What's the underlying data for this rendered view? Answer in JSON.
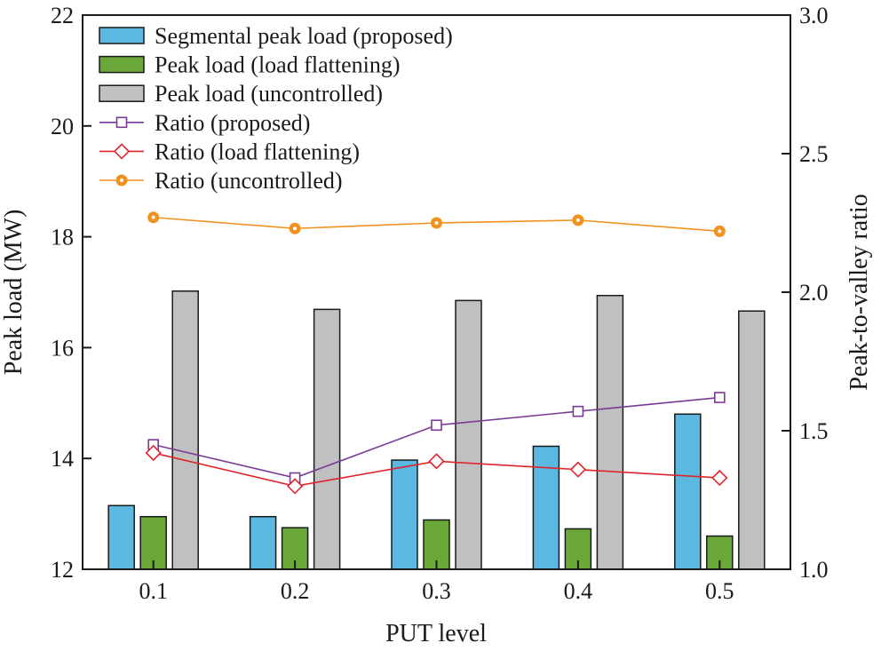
{
  "chart_data": {
    "type": "bar",
    "xlabel": "PUT level",
    "ylabel": "Peak load (MW)",
    "y2label": "Peak-to-valley ratio",
    "categories": [
      "0.1",
      "0.2",
      "0.3",
      "0.4",
      "0.5"
    ],
    "ylim": [
      12,
      22
    ],
    "y2lim": [
      1.0,
      3.0
    ],
    "yticks": [
      "12",
      "14",
      "16",
      "18",
      "20",
      "22"
    ],
    "y2ticks": [
      "1.0",
      "1.5",
      "2.0",
      "2.5",
      "3.0"
    ],
    "grid": false,
    "legend_position": "top-left",
    "bar_series": [
      {
        "name": "Segmental peak load (proposed)",
        "color": "#5bb8e0",
        "values": [
          13.15,
          12.95,
          13.97,
          14.22,
          14.8
        ]
      },
      {
        "name": "Peak load (load flattening)",
        "color": "#6aa83a",
        "values": [
          12.95,
          12.75,
          12.89,
          12.73,
          12.6
        ]
      },
      {
        "name": "Peak load (uncontrolled)",
        "color": "#c0c0c0",
        "values": [
          17.02,
          16.69,
          16.85,
          16.94,
          16.66
        ]
      }
    ],
    "line_series": [
      {
        "name": "Ratio (proposed)",
        "color": "#7a3a94",
        "marker": "square",
        "values": [
          1.45,
          1.33,
          1.52,
          1.57,
          1.62
        ]
      },
      {
        "name": "Ratio (load flattening)",
        "color": "#e0242a",
        "marker": "diamond",
        "values": [
          1.42,
          1.3,
          1.39,
          1.36,
          1.33
        ]
      },
      {
        "name": "Ratio (uncontrolled)",
        "color": "#f0921e",
        "marker": "circle",
        "values": [
          2.27,
          2.23,
          2.25,
          2.26,
          2.22
        ]
      }
    ]
  }
}
